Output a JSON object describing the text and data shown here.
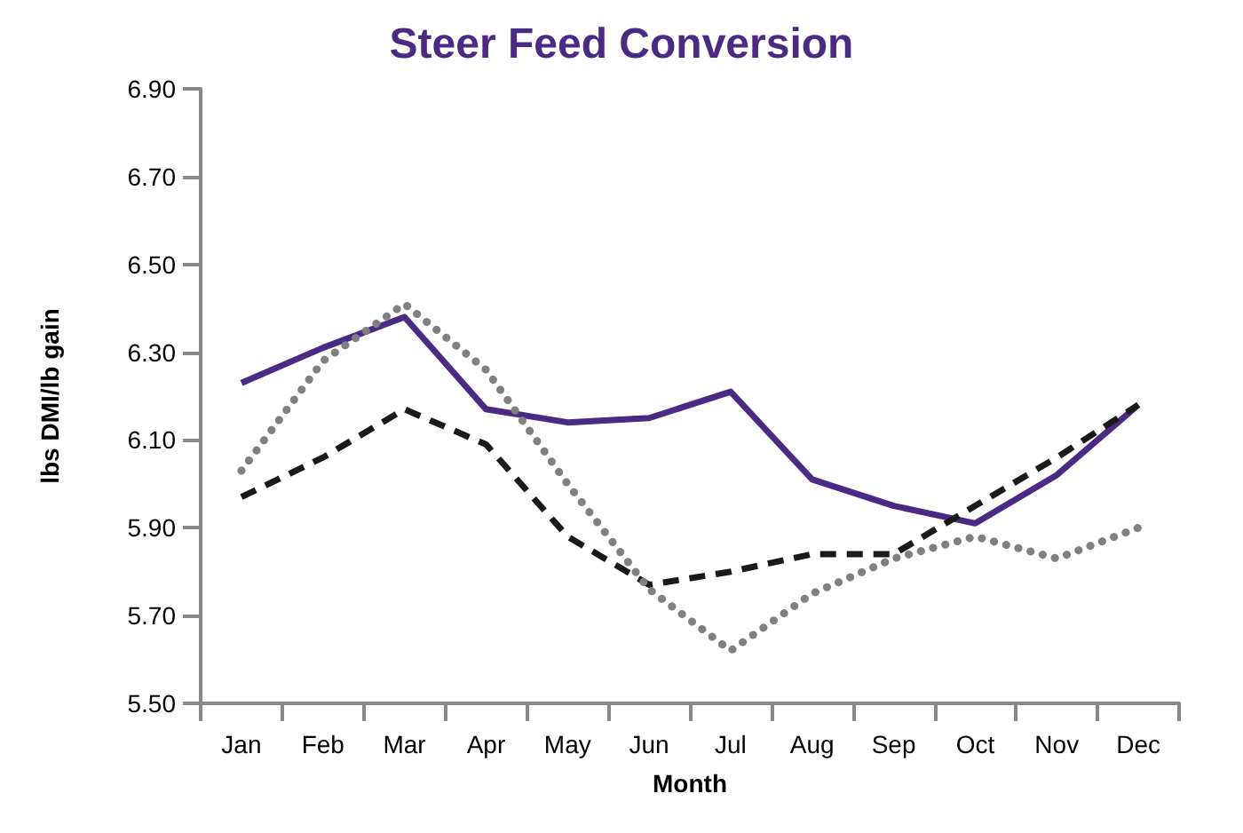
{
  "chart_data": {
    "type": "line",
    "title": "Steer Feed Conversion",
    "xlabel": "Month",
    "ylabel": "lbs DMI/lb gain",
    "categories": [
      "Jan",
      "Feb",
      "Mar",
      "Apr",
      "May",
      "Jun",
      "Jul",
      "Aug",
      "Sep",
      "Oct",
      "Nov",
      "Dec"
    ],
    "series": [
      {
        "color": "#4b2a84",
        "line_style": "solid",
        "values": [
          6.23,
          6.31,
          6.38,
          6.17,
          6.14,
          6.15,
          6.21,
          6.01,
          5.95,
          5.91,
          6.02,
          6.18
        ]
      },
      {
        "color": "#1a1a1a",
        "line_style": "dashed",
        "values": [
          5.97,
          6.06,
          6.17,
          6.09,
          5.88,
          5.77,
          5.8,
          5.84,
          5.84,
          5.95,
          6.06,
          6.18
        ]
      },
      {
        "color": "#808080",
        "line_style": "dotted",
        "values": [
          6.03,
          6.28,
          6.41,
          6.26,
          6.0,
          5.76,
          5.62,
          5.75,
          5.83,
          5.88,
          5.83,
          5.9
        ]
      }
    ],
    "ylim": [
      5.5,
      6.9
    ],
    "yticks": [
      {
        "value": 5.5,
        "label": "5.50"
      },
      {
        "value": 5.7,
        "label": "5.70"
      },
      {
        "value": 5.9,
        "label": "5.90"
      },
      {
        "value": 6.1,
        "label": "6.10"
      },
      {
        "value": 6.3,
        "label": "6.30"
      },
      {
        "value": 6.5,
        "label": "6.50"
      },
      {
        "value": 6.7,
        "label": "6.70"
      },
      {
        "value": 6.9,
        "label": "6.90"
      }
    ],
    "grid": false,
    "marker": "none"
  }
}
